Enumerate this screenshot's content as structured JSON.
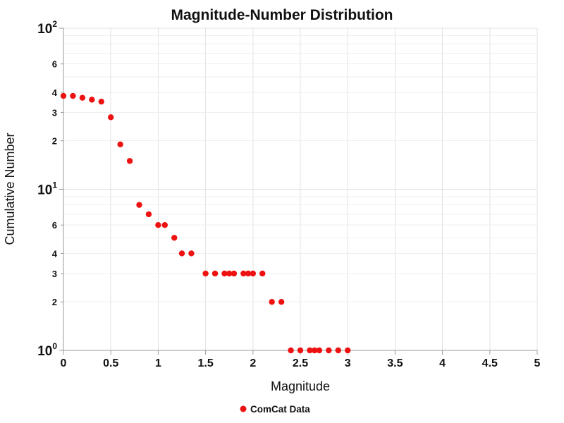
{
  "chart_data": {
    "type": "scatter",
    "title": "Magnitude-Number Distribution",
    "xlabel": "Magnitude",
    "ylabel": "Cumulative Number",
    "x_range": [
      0,
      5
    ],
    "y_range": [
      1,
      100
    ],
    "y_scale": "log",
    "grid": true,
    "legend_position": "bottom-center",
    "x_ticks": [
      {
        "value": 0,
        "label": "0"
      },
      {
        "value": 0.5,
        "label": "0.5"
      },
      {
        "value": 1,
        "label": "1"
      },
      {
        "value": 1.5,
        "label": "1.5"
      },
      {
        "value": 2,
        "label": "2"
      },
      {
        "value": 2.5,
        "label": "2.5"
      },
      {
        "value": 3,
        "label": "3"
      },
      {
        "value": 3.5,
        "label": "3.5"
      },
      {
        "value": 4,
        "label": "4"
      },
      {
        "value": 4.5,
        "label": "4.5"
      },
      {
        "value": 5,
        "label": "5"
      }
    ],
    "y_major_ticks": [
      {
        "value": 1,
        "base": "10",
        "exp": "0"
      },
      {
        "value": 10,
        "base": "10",
        "exp": "1"
      },
      {
        "value": 100,
        "base": "10",
        "exp": "2"
      }
    ],
    "y_minor_ticks": [
      {
        "value": 2,
        "label": "2"
      },
      {
        "value": 3,
        "label": "3"
      },
      {
        "value": 4,
        "label": "4"
      },
      {
        "value": 6,
        "label": "6"
      },
      {
        "value": 20,
        "label": "2"
      },
      {
        "value": 30,
        "label": "3"
      },
      {
        "value": 40,
        "label": "4"
      },
      {
        "value": 60,
        "label": "6"
      }
    ],
    "y_minor_gridlines": [
      2,
      3,
      4,
      5,
      6,
      7,
      8,
      9,
      20,
      30,
      40,
      50,
      60,
      70,
      80,
      90
    ],
    "colors": {
      "marker": "#ee1111",
      "grid": "#e3e3e3",
      "grid_minor": "#efefef",
      "axis": "#999999",
      "text": "#111111"
    },
    "series": [
      {
        "name": "ComCat Data",
        "x": [
          0,
          0.1,
          0.2,
          0.3,
          0.4,
          0.5,
          0.6,
          0.7,
          0.8,
          0.9,
          1.0,
          1.07,
          1.17,
          1.25,
          1.35,
          1.5,
          1.6,
          1.7,
          1.75,
          1.8,
          1.9,
          1.95,
          2.0,
          2.1,
          2.2,
          2.3,
          2.4,
          2.5,
          2.6,
          2.65,
          2.7,
          2.8,
          2.9,
          3.0
        ],
        "y": [
          38,
          38,
          37,
          36,
          35,
          28,
          19,
          15,
          8,
          7,
          6,
          6,
          5,
          4,
          4,
          3,
          3,
          3,
          3,
          3,
          3,
          3,
          3,
          3,
          2,
          2,
          1,
          1,
          1,
          1,
          1,
          1,
          1,
          1
        ]
      }
    ]
  }
}
